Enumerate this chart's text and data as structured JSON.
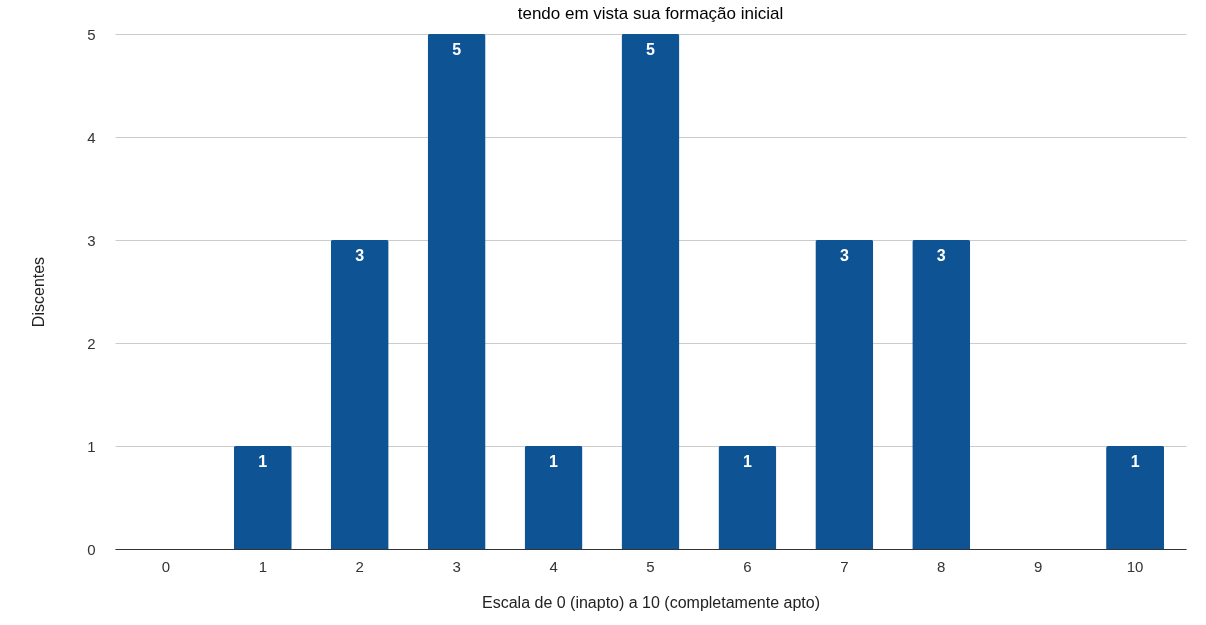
{
  "chart_data": {
    "type": "bar",
    "title": "tendo em vista sua formação inicial",
    "xlabel": "Escala de 0 (inapto) a 10 (completamente apto)",
    "ylabel": "Discentes",
    "categories": [
      "0",
      "1",
      "2",
      "3",
      "4",
      "5",
      "6",
      "7",
      "8",
      "9",
      "10"
    ],
    "values": [
      0,
      1,
      3,
      5,
      1,
      5,
      1,
      3,
      3,
      0,
      1
    ],
    "value_labels": [
      null,
      "1",
      "3",
      "5",
      "1",
      "5",
      "1",
      "3",
      "3",
      null,
      "1"
    ],
    "color": "#0e5394",
    "ylim": [
      0,
      5
    ],
    "yticks": [
      0,
      1,
      2,
      3,
      4,
      5
    ],
    "grid": "y"
  }
}
